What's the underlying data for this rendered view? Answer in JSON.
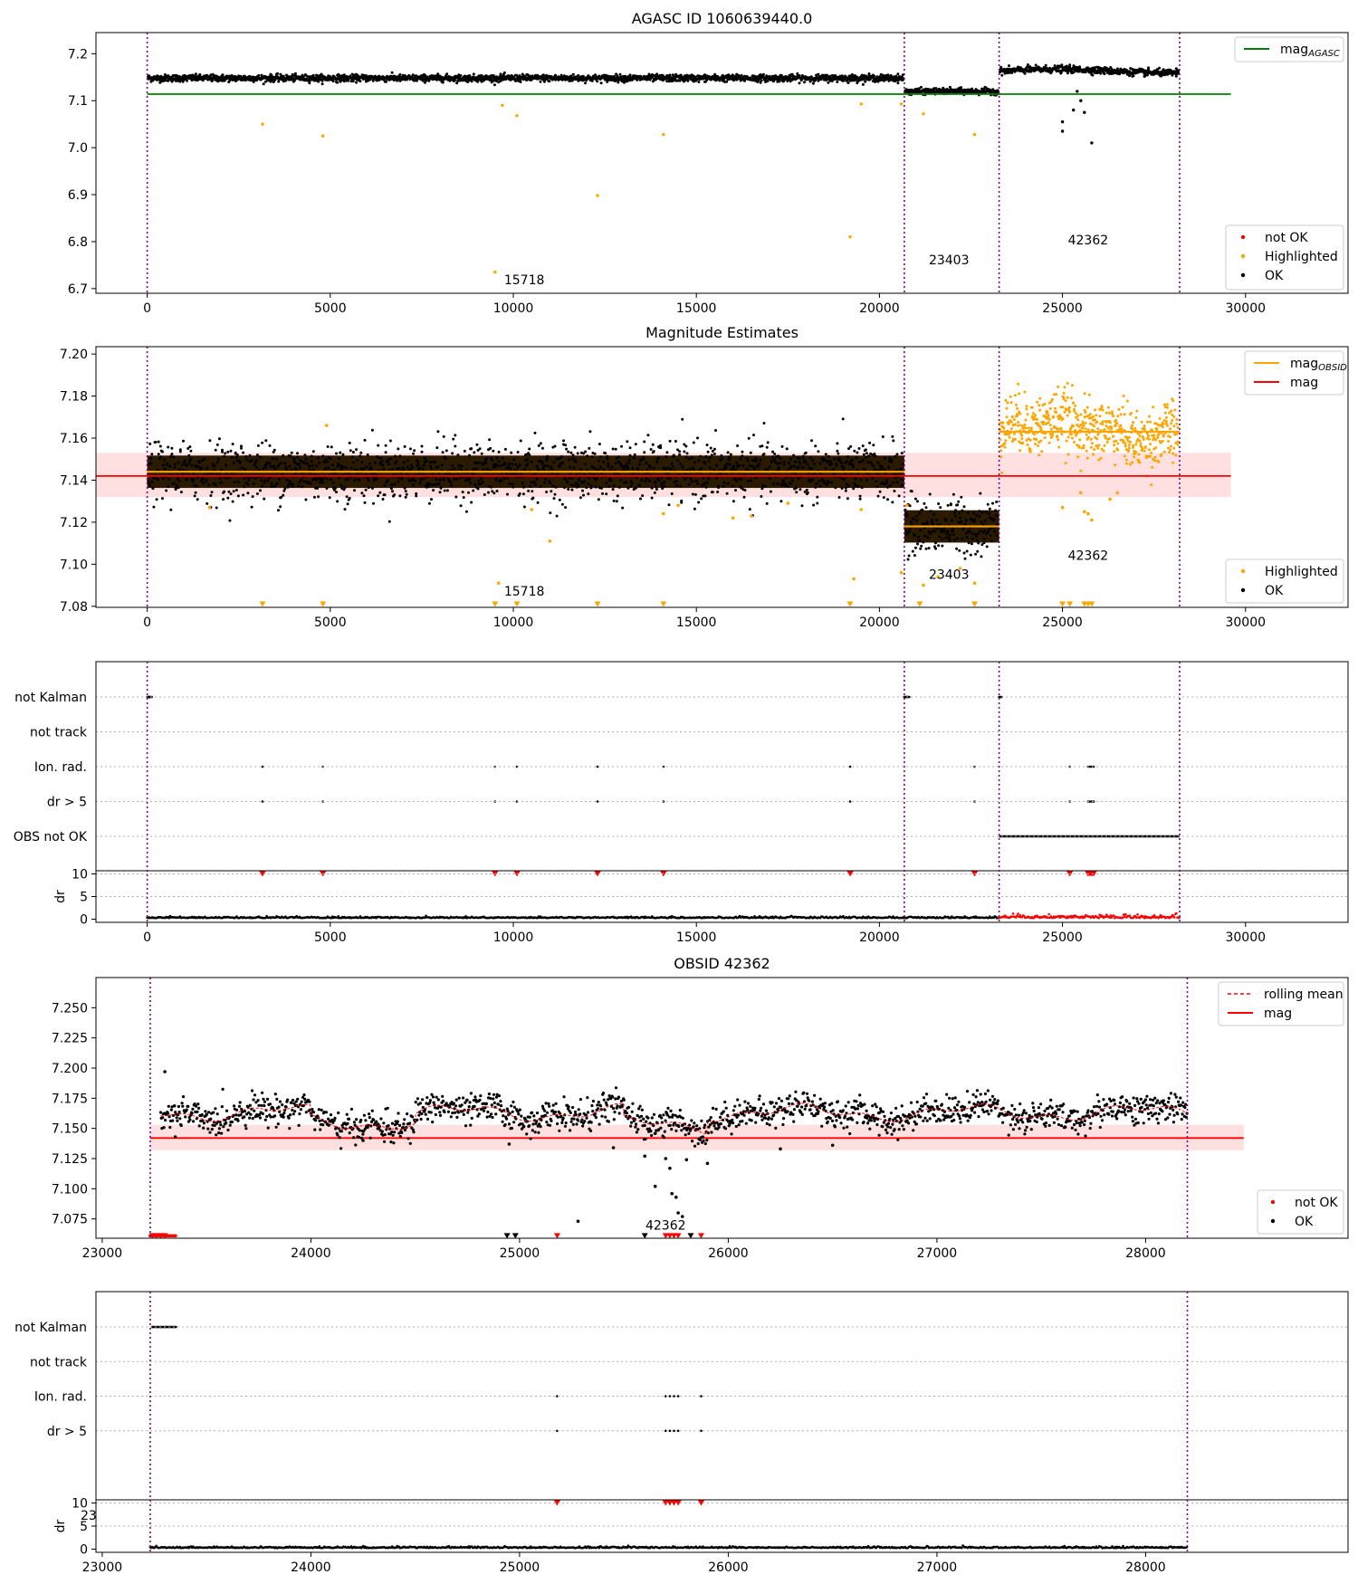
{
  "chart_data": [
    {
      "panel": 1,
      "type": "scatter",
      "title": "AGASC ID 1060639440.0",
      "xlim": [
        -1400,
        32800
      ],
      "ylim": [
        6.69,
        7.245
      ],
      "yticks": [
        6.7,
        6.8,
        6.9,
        7.0,
        7.1,
        7.2
      ],
      "ytick_labels": [
        "6.7",
        "6.8",
        "6.9",
        "7.0",
        "7.1",
        "7.2"
      ],
      "xticks": [
        0,
        5000,
        10000,
        15000,
        20000,
        25000,
        30000
      ],
      "xtick_labels": [
        "0",
        "5000",
        "10000",
        "15000",
        "20000",
        "25000",
        "30000"
      ],
      "grid": false,
      "vlines": [
        0,
        20680,
        23270,
        28200
      ],
      "reference_line": {
        "name": "mag_AGASC",
        "y": 7.114,
        "x_range": [
          0,
          29600
        ],
        "color": "#008000"
      },
      "obsid_labels": [
        {
          "text": "15718",
          "x": 10300,
          "y": 6.709
        },
        {
          "text": "23403",
          "x": 21900,
          "y": 6.752
        },
        {
          "text": "42362",
          "x": 25700,
          "y": 6.794
        }
      ],
      "ok_segments": [
        {
          "x_start": 0,
          "x_end": 20680,
          "mean": 7.148,
          "spread": 0.008
        },
        {
          "x_start": 20680,
          "x_end": 23270,
          "mean": 7.12,
          "spread": 0.007
        },
        {
          "x_start": 23270,
          "x_end": 28200,
          "mean": 7.163,
          "spread": 0.008
        }
      ],
      "outliers_highlighted": [
        [
          3150,
          7.05
        ],
        [
          4800,
          7.025
        ],
        [
          9500,
          6.735
        ],
        [
          9700,
          7.09
        ],
        [
          10100,
          7.068
        ],
        [
          12300,
          6.898
        ],
        [
          14100,
          7.028
        ],
        [
          19200,
          6.81
        ],
        [
          19500,
          7.093
        ],
        [
          20600,
          7.093
        ],
        [
          21200,
          7.072
        ],
        [
          22600,
          7.028
        ]
      ],
      "outliers_ok": [
        [
          25000,
          7.035
        ],
        [
          25000,
          7.055
        ],
        [
          25300,
          7.08
        ],
        [
          25400,
          7.12
        ],
        [
          25500,
          7.1
        ],
        [
          25600,
          7.075
        ],
        [
          25800,
          7.01
        ]
      ],
      "legend": [
        "not OK",
        "Highlighted",
        "OK"
      ],
      "legend_top": "mag_AGASC",
      "colors": {
        "ok": "#000000",
        "highlighted": "#FFA500",
        "not_ok": "#FF0000",
        "agasc": "#008000",
        "vline": "#800080"
      }
    },
    {
      "panel": 2,
      "type": "scatter",
      "title": "Magnitude Estimates",
      "xlim": [
        -1400,
        32800
      ],
      "ylim": [
        7.0795,
        7.2035
      ],
      "yticks": [
        7.08,
        7.1,
        7.12,
        7.14,
        7.16,
        7.18,
        7.2
      ],
      "ytick_labels": [
        "7.08",
        "7.10",
        "7.12",
        "7.14",
        "7.16",
        "7.18",
        "7.20"
      ],
      "xticks": [
        0,
        5000,
        10000,
        15000,
        20000,
        25000,
        30000
      ],
      "xtick_labels": [
        "0",
        "5000",
        "10000",
        "15000",
        "20000",
        "25000",
        "30000"
      ],
      "grid": false,
      "vlines": [
        0,
        20680,
        23270,
        28200
      ],
      "mag_line": {
        "name": "mag",
        "y": 7.142,
        "band": [
          7.132,
          7.153
        ],
        "x_range": [
          -1400,
          29600
        ],
        "color": "#FF0000"
      },
      "obsid_means": [
        {
          "x_start": 0,
          "x_end": 20680,
          "y": 7.144
        },
        {
          "x_start": 20680,
          "x_end": 23270,
          "y": 7.118
        },
        {
          "x_start": 23270,
          "x_end": 28200,
          "y": 7.163
        }
      ],
      "segments": [
        {
          "x_start": 0,
          "x_end": 20680,
          "mean": 7.144,
          "spread": 0.007,
          "color": "black"
        },
        {
          "x_start": 20680,
          "x_end": 23270,
          "mean": 7.118,
          "spread": 0.007,
          "color": "black"
        },
        {
          "x_start": 23270,
          "x_end": 28200,
          "mean": 7.164,
          "spread": 0.007,
          "color": "orange"
        }
      ],
      "obsid_labels": [
        {
          "text": "15718",
          "x": 10300,
          "y": 7.085
        },
        {
          "text": "23403",
          "x": 21900,
          "y": 7.093
        },
        {
          "text": "42362",
          "x": 25700,
          "y": 7.102
        }
      ],
      "legend": [
        "Highlighted",
        "OK"
      ],
      "legend_top": [
        "mag_OBSID",
        "mag"
      ]
    },
    {
      "panel": 3,
      "type": "flags",
      "xlim": [
        -1400,
        32800
      ],
      "rows": [
        "not Kalman",
        "not track",
        "Ion. rad.",
        "dr > 5",
        "OBS not OK"
      ],
      "xticks": [
        0,
        5000,
        10000,
        15000,
        20000,
        25000,
        30000
      ],
      "xtick_labels": [
        "0",
        "5000",
        "10000",
        "15000",
        "20000",
        "25000",
        "30000"
      ],
      "flag_events": {
        "not Kalman": [
          0,
          50,
          20680,
          20740,
          23270
        ],
        "not track": [],
        "Ion. rad.": [
          3150,
          4800,
          9500,
          10100,
          12300,
          14100,
          19200,
          22600,
          25200,
          25700,
          25750,
          25800,
          25850
        ],
        "dr > 5": [
          3150,
          4800,
          9500,
          10100,
          12300,
          14100,
          19200,
          22600,
          25200,
          25700,
          25750,
          25800,
          25850
        ],
        "OBS not OK": {
          "range": [
            23270,
            28200
          ]
        }
      },
      "dr_ylabel": "dr",
      "dr_yticks": [
        0,
        5,
        10
      ],
      "dr_ytick_labels": [
        "0",
        "5",
        "10"
      ]
    },
    {
      "panel": 4,
      "type": "scatter",
      "title": "OBSID 42362",
      "xlim": [
        22970,
        28970
      ],
      "ylim": [
        7.059,
        7.275
      ],
      "yticks": [
        7.075,
        7.1,
        7.125,
        7.15,
        7.175,
        7.2,
        7.225,
        7.25
      ],
      "ytick_labels": [
        "7.075",
        "7.100",
        "7.125",
        "7.150",
        "7.175",
        "7.200",
        "7.225",
        "7.250"
      ],
      "xticks": [
        23000,
        24000,
        25000,
        26000,
        27000,
        28000
      ],
      "xtick_labels": [
        "23000",
        "24000",
        "25000",
        "26000",
        "27000",
        "28000"
      ],
      "grid": false,
      "vlines": [
        23230,
        28200
      ],
      "mag_line": {
        "name": "mag",
        "y": 7.142,
        "band": [
          7.132,
          7.153
        ],
        "x_range": [
          23230,
          28470
        ],
        "color": "#FF0000"
      },
      "rolling_mean_base": 7.163,
      "obsid_labels": [
        {
          "text": "42362",
          "x": 25700,
          "y": 7.066
        }
      ],
      "outliers_ok": [
        [
          23300,
          7.197
        ],
        [
          23350,
          7.143
        ],
        [
          24250,
          7.14
        ],
        [
          24950,
          7.137
        ],
        [
          25450,
          7.134
        ],
        [
          25600,
          7.127
        ],
        [
          25650,
          7.102
        ],
        [
          25700,
          7.125
        ],
        [
          25720,
          7.117
        ],
        [
          25730,
          7.096
        ],
        [
          25750,
          7.093
        ],
        [
          25760,
          7.08
        ],
        [
          25780,
          7.077
        ],
        [
          25800,
          7.124
        ],
        [
          25900,
          7.121
        ],
        [
          26250,
          7.133
        ],
        [
          26500,
          7.136
        ],
        [
          25280,
          7.073
        ]
      ],
      "bottom_markers_red": [
        23240,
        23260,
        23280,
        23300,
        25180,
        25700,
        25720,
        25740,
        25760,
        25870
      ],
      "bottom_markers_black": [
        24940,
        24980,
        25600,
        25820
      ],
      "legend": [
        "not OK",
        "OK"
      ],
      "legend_top": [
        "rolling mean",
        "mag"
      ]
    },
    {
      "panel": 5,
      "type": "flags",
      "xlim": [
        22970,
        28970
      ],
      "rows": [
        "not Kalman",
        "not track",
        "Ion. rad.",
        "dr > 5"
      ],
      "xticks": [
        23000,
        24000,
        25000,
        26000,
        27000,
        28000
      ],
      "xtick_labels": [
        "23000",
        "24000",
        "25000",
        "26000",
        "27000",
        "28000"
      ],
      "flag_events": {
        "not Kalman": [
          23240,
          23260,
          23280,
          23300,
          23320,
          23340
        ],
        "not track": [],
        "Ion. rad.": [
          25180,
          25700,
          25720,
          25740,
          25760,
          25870
        ],
        "dr > 5": [
          25180,
          25700,
          25720,
          25740,
          25760,
          25870
        ]
      },
      "dr_ylabel": "dr",
      "dr_yticks": [
        0,
        5,
        10
      ],
      "dr_ytick_labels": [
        "0",
        "5",
        "10"
      ],
      "stray_tick_label": "23"
    }
  ]
}
